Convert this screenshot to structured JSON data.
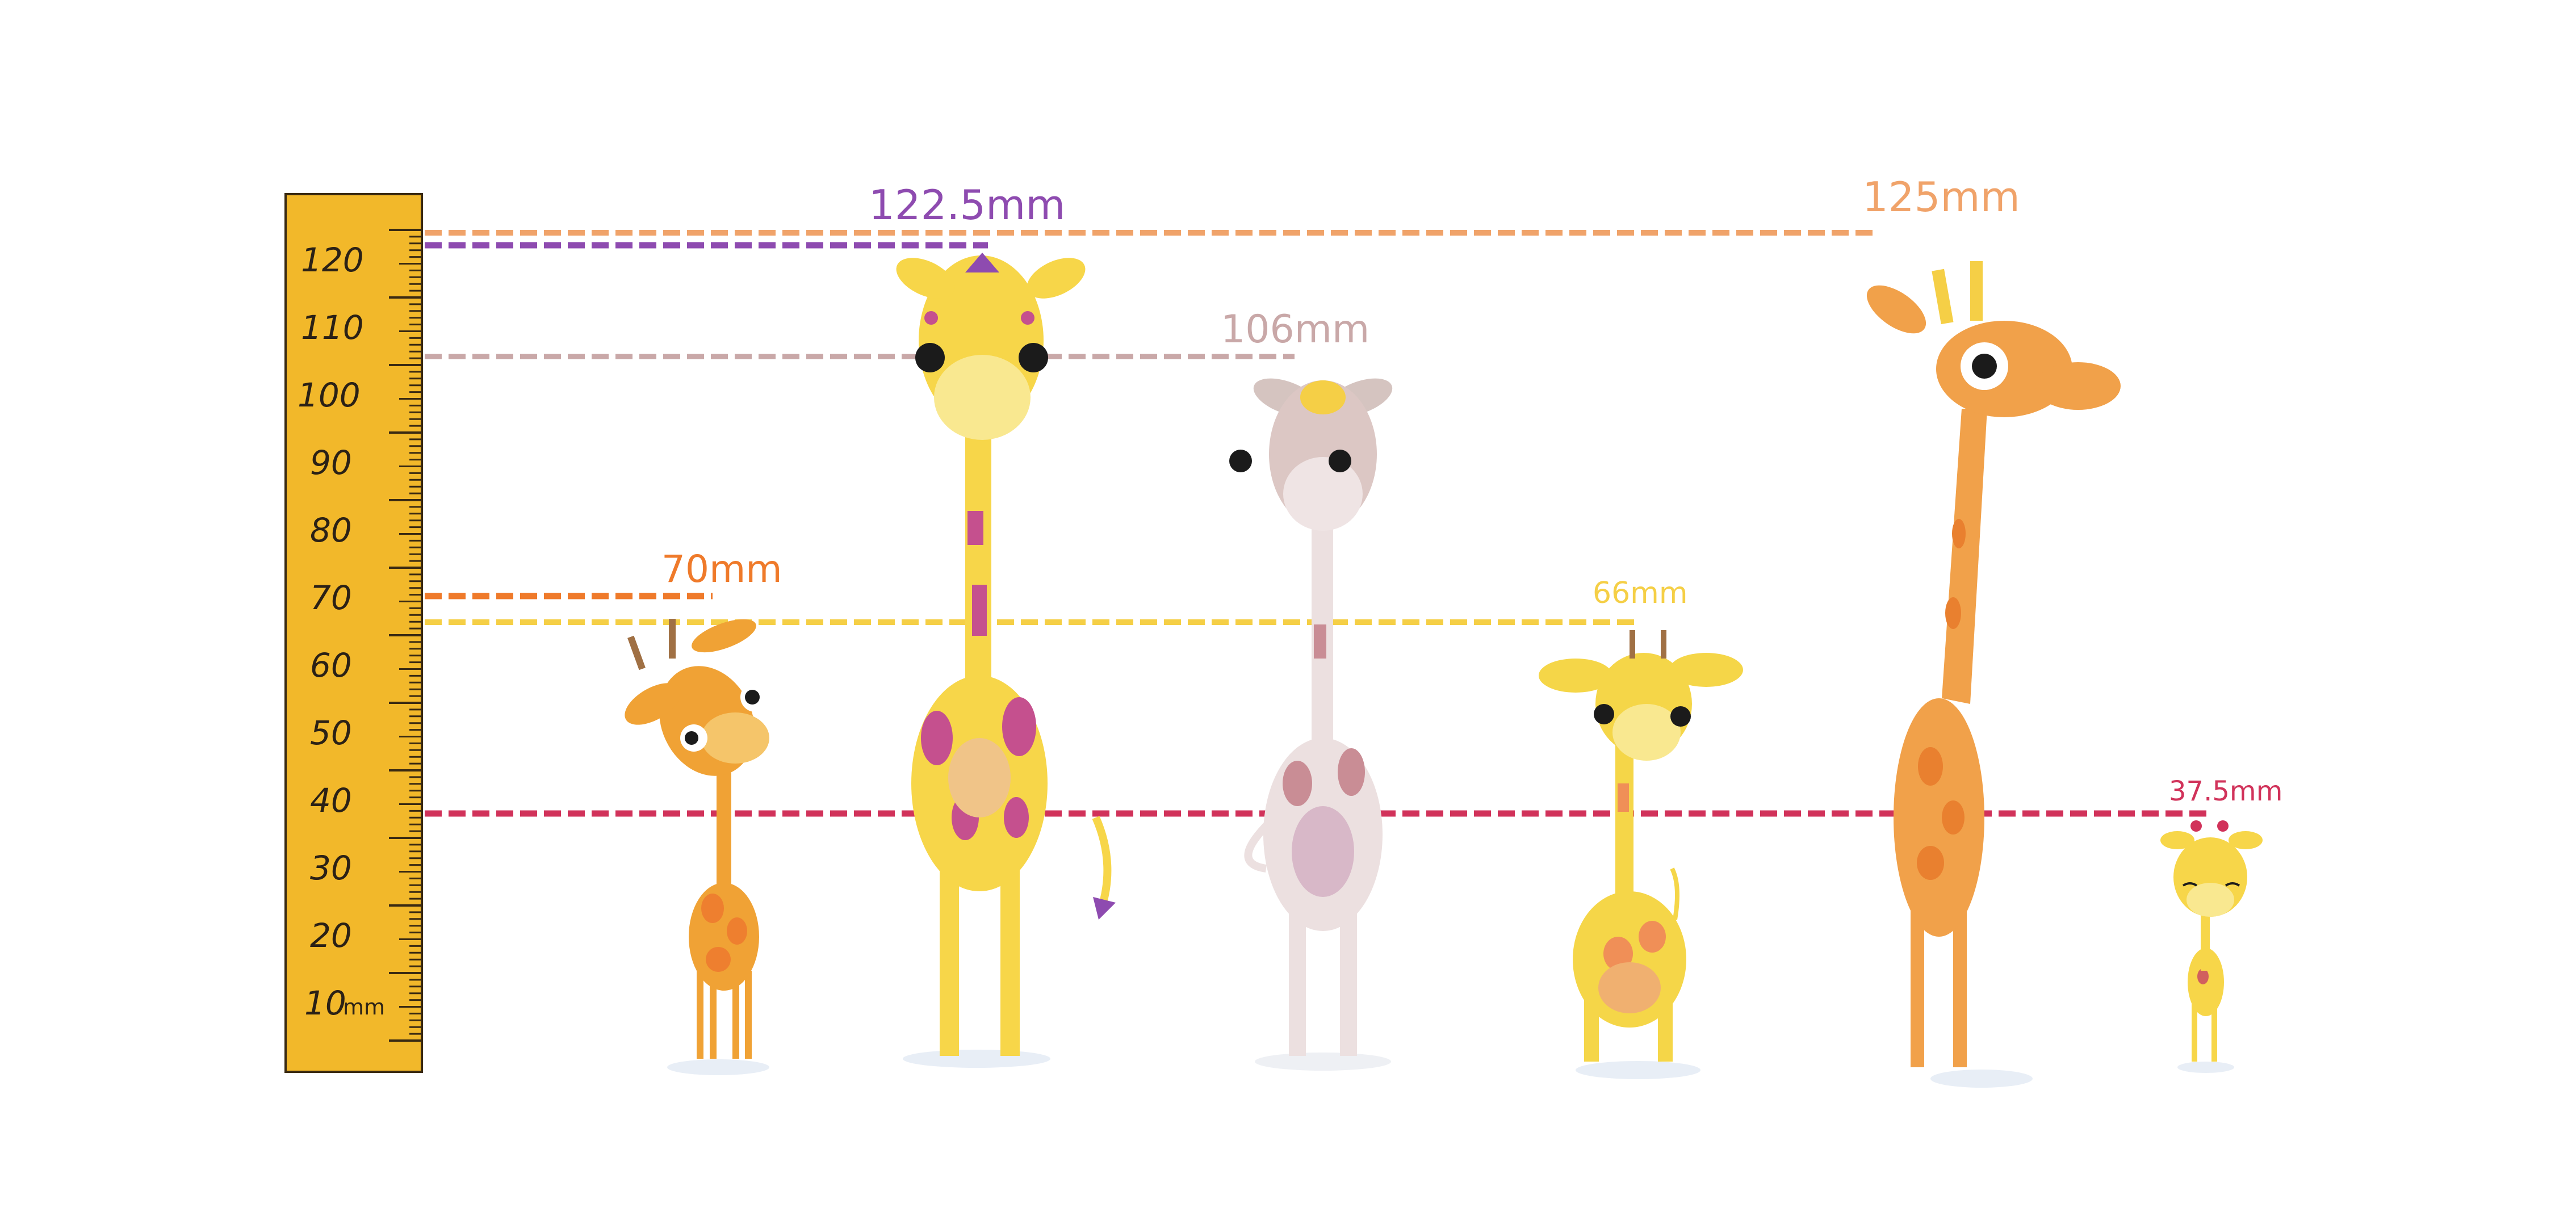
{
  "ruler": {
    "tick_labels": [
      "120",
      "110",
      "100",
      "90",
      "80",
      "70",
      "60",
      "50",
      "40",
      "30",
      "20",
      "10"
    ],
    "unit": "mm",
    "color": "#f2b82a"
  },
  "measurements": [
    {
      "label": "122.5mm",
      "value_mm": 122.5,
      "color": "#8e4bb0"
    },
    {
      "label": "125mm",
      "value_mm": 125,
      "color": "#f0a36a"
    },
    {
      "label": "106mm",
      "value_mm": 106,
      "color": "#c9a8a8"
    },
    {
      "label": "70mm",
      "value_mm": 70,
      "color": "#ef7a2a"
    },
    {
      "label": "66mm",
      "value_mm": 66,
      "color": "#f5cf46"
    },
    {
      "label": "37.5mm",
      "value_mm": 37.5,
      "color": "#d1325a"
    }
  ],
  "giraffes": [
    {
      "name": "orange-small-giraffe",
      "height_mm": 70,
      "body": "#f0a235",
      "spots": "#ee7f2f"
    },
    {
      "name": "yellow-pink-giraffe",
      "height_mm": 122.5,
      "body": "#f7d649",
      "spots": "#c5508e"
    },
    {
      "name": "pale-pink-giraffe",
      "height_mm": 106,
      "body": "#ece0e0",
      "spots": "#c98d95"
    },
    {
      "name": "yellow-short-giraffe",
      "height_mm": 66,
      "body": "#f5d648",
      "spots": "#f08f57"
    },
    {
      "name": "tall-orange-giraffe",
      "height_mm": 125,
      "body": "#f1a14a",
      "spots": "#e9802f"
    },
    {
      "name": "baby-giraffe",
      "height_mm": 37.5,
      "body": "#f7d649",
      "spots": "#d1605e"
    }
  ]
}
